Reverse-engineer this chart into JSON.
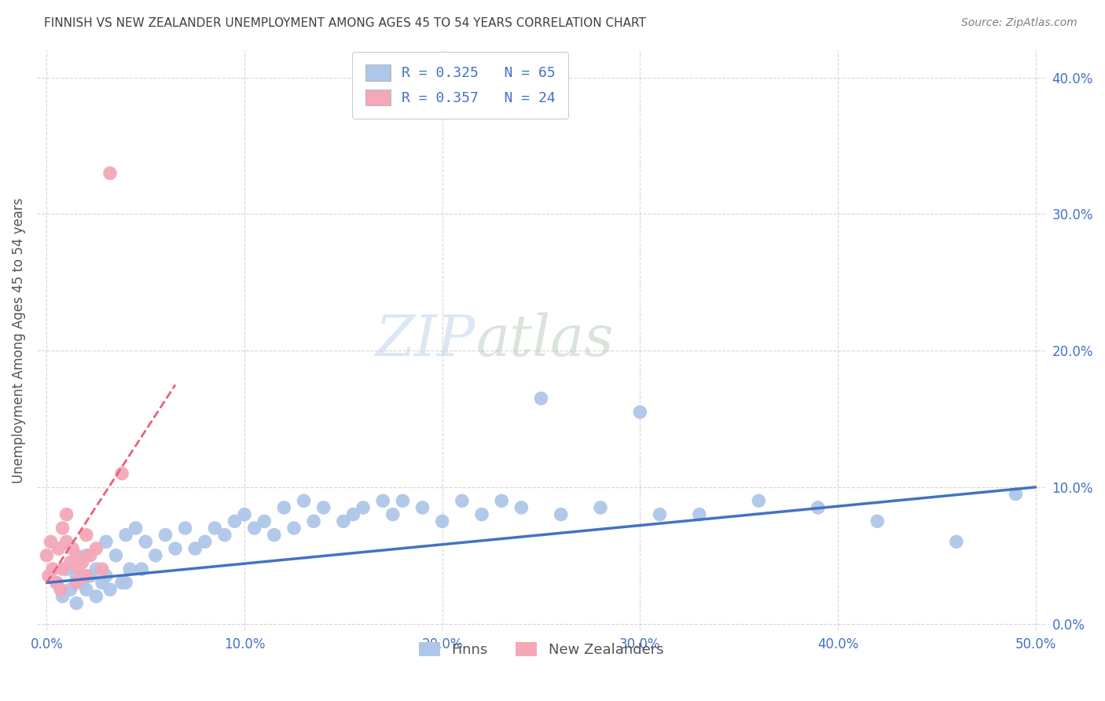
{
  "title": "FINNISH VS NEW ZEALANDER UNEMPLOYMENT AMONG AGES 45 TO 54 YEARS CORRELATION CHART",
  "source": "Source: ZipAtlas.com",
  "ylabel": "Unemployment Among Ages 45 to 54 years",
  "xlim": [
    0.0,
    0.5
  ],
  "ylim": [
    -0.005,
    0.42
  ],
  "x_ticks": [
    0.0,
    0.1,
    0.2,
    0.3,
    0.4,
    0.5
  ],
  "y_ticks": [
    0.0,
    0.1,
    0.2,
    0.3,
    0.4
  ],
  "legend_R_N": [
    "R = 0.325",
    "N = 65",
    "R = 0.357",
    "N = 24"
  ],
  "legend_bottom": [
    "Finns",
    "New Zealanders"
  ],
  "finns_color": "#aec6e8",
  "nz_color": "#f4a8b8",
  "finn_line_color": "#4472c4",
  "nz_line_color": "#e8607a",
  "watermark_zip": "ZIP",
  "watermark_atlas": "atlas",
  "title_color": "#404040",
  "axis_tick_color": "#4472c4",
  "grid_color": "#cccccc",
  "finn_scatter_x": [
    0.005,
    0.008,
    0.01,
    0.012,
    0.015,
    0.015,
    0.018,
    0.02,
    0.02,
    0.022,
    0.025,
    0.025,
    0.028,
    0.03,
    0.03,
    0.032,
    0.035,
    0.038,
    0.04,
    0.04,
    0.042,
    0.045,
    0.048,
    0.05,
    0.055,
    0.06,
    0.065,
    0.07,
    0.075,
    0.08,
    0.085,
    0.09,
    0.095,
    0.1,
    0.105,
    0.11,
    0.115,
    0.12,
    0.125,
    0.13,
    0.135,
    0.14,
    0.15,
    0.155,
    0.16,
    0.17,
    0.175,
    0.18,
    0.19,
    0.2,
    0.21,
    0.22,
    0.23,
    0.24,
    0.25,
    0.26,
    0.28,
    0.3,
    0.31,
    0.33,
    0.36,
    0.39,
    0.42,
    0.46,
    0.49
  ],
  "finn_scatter_y": [
    0.03,
    0.02,
    0.04,
    0.025,
    0.035,
    0.015,
    0.03,
    0.05,
    0.025,
    0.035,
    0.04,
    0.02,
    0.03,
    0.06,
    0.035,
    0.025,
    0.05,
    0.03,
    0.065,
    0.03,
    0.04,
    0.07,
    0.04,
    0.06,
    0.05,
    0.065,
    0.055,
    0.07,
    0.055,
    0.06,
    0.07,
    0.065,
    0.075,
    0.08,
    0.07,
    0.075,
    0.065,
    0.085,
    0.07,
    0.09,
    0.075,
    0.085,
    0.075,
    0.08,
    0.085,
    0.09,
    0.08,
    0.09,
    0.085,
    0.075,
    0.09,
    0.08,
    0.09,
    0.085,
    0.165,
    0.08,
    0.085,
    0.155,
    0.08,
    0.08,
    0.09,
    0.085,
    0.075,
    0.06,
    0.095
  ],
  "nz_scatter_x": [
    0.0,
    0.001,
    0.002,
    0.003,
    0.005,
    0.006,
    0.007,
    0.008,
    0.008,
    0.01,
    0.01,
    0.012,
    0.013,
    0.015,
    0.015,
    0.016,
    0.018,
    0.02,
    0.02,
    0.022,
    0.025,
    0.028,
    0.032,
    0.038
  ],
  "nz_scatter_y": [
    0.05,
    0.035,
    0.06,
    0.04,
    0.03,
    0.055,
    0.025,
    0.07,
    0.04,
    0.08,
    0.06,
    0.045,
    0.055,
    0.03,
    0.05,
    0.04,
    0.045,
    0.065,
    0.035,
    0.05,
    0.055,
    0.04,
    0.33,
    0.11
  ],
  "finn_line_x": [
    0.0,
    0.5
  ],
  "finn_line_y": [
    0.03,
    0.1
  ],
  "nz_line_x": [
    0.0,
    0.065
  ],
  "nz_line_y": [
    0.03,
    0.175
  ]
}
